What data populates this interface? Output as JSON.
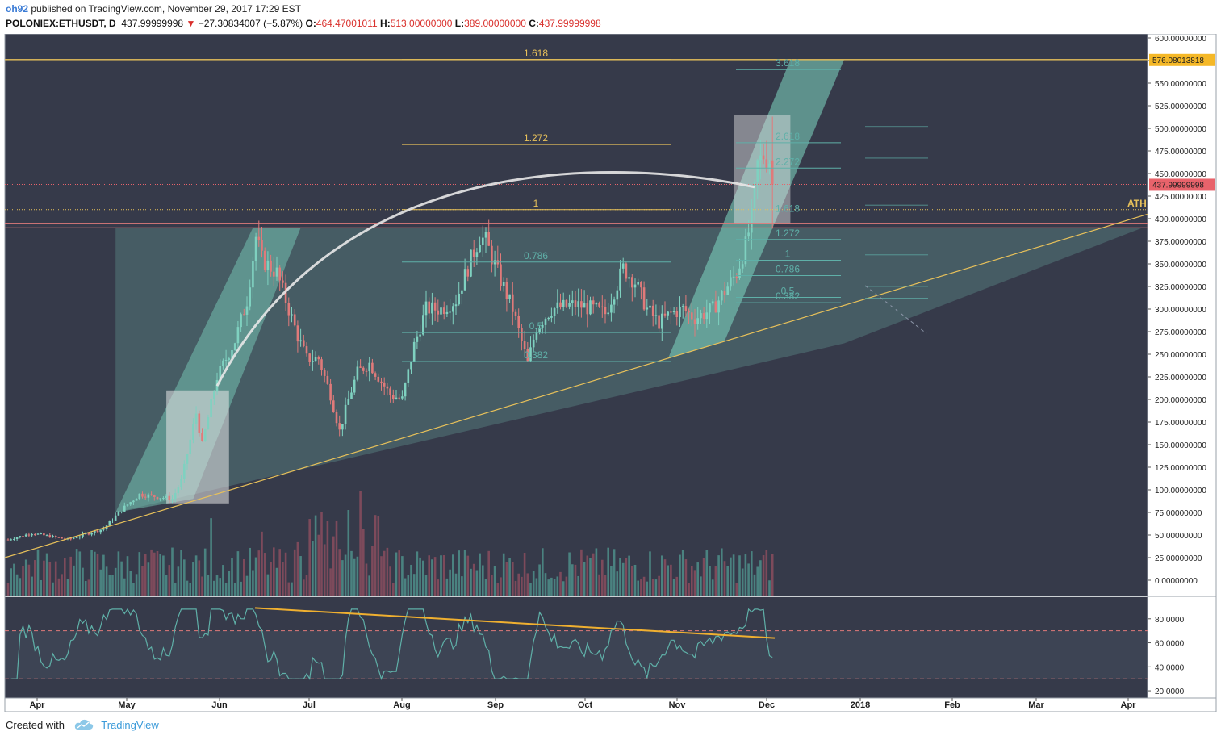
{
  "header": {
    "user": "oh92",
    "published": " published on TradingView.com, November 29, 2017 17:29 EST",
    "symbol": "POLONIEX:ETHUSDT, D",
    "price": "437.99999998",
    "arrow": "▼",
    "change": "−27.30834007 (−5.87%)",
    "o_label": "O:",
    "o_value": "464.47001011",
    "h_label": "H:",
    "h_value": "513.00000000",
    "l_label": "L:",
    "l_value": "389.00000000",
    "c_label": "C:",
    "c_value": "437.99999998"
  },
  "footer": {
    "created": "Created with",
    "brand": "TradingView"
  },
  "colors": {
    "background": "#363a4a",
    "up": "#7fd1c0",
    "down": "#e07a7a",
    "fib_gold": "#e8c15a",
    "fib_teal": "#5fb0a8",
    "channel": "#7fd8c2",
    "price_tag": "#e8636b",
    "level_tag": "#f5b827"
  },
  "chart_data": {
    "type": "candlestick",
    "symbol": "POLONIEX:ETHUSDT",
    "interval": "D",
    "price_axis": {
      "ticks": [
        "600.00000000",
        "575.00000000",
        "550.00000000",
        "525.00000000",
        "500.00000000",
        "475.00000000",
        "450.00000000",
        "425.00000000",
        "400.00000000",
        "375.00000000",
        "350.00000000",
        "325.00000000",
        "300.00000000",
        "275.00000000",
        "250.00000000",
        "225.00000000",
        "200.00000000",
        "175.00000000",
        "150.00000000",
        "125.00000000",
        "100.00000000",
        "75.00000000",
        "50.00000000",
        "25.00000000",
        "0.00000000"
      ],
      "range": [
        -18,
        612
      ]
    },
    "rsi_axis": {
      "ticks": [
        "80.0000",
        "60.0000",
        "40.0000",
        "20.0000"
      ],
      "range": [
        14,
        98
      ],
      "upper_band": 70,
      "lower_band": 30
    },
    "time_axis": [
      "Apr",
      "May",
      "Jun",
      "Jul",
      "Aug",
      "Sep",
      "Oct",
      "Nov",
      "Dec",
      "2018",
      "Feb",
      "Mar",
      "Apr"
    ],
    "current_price_label": "437.99999998",
    "level_label": "576.08013818",
    "annotations": {
      "ath": "ATH",
      "fib_left": [
        "1.618",
        "1.272",
        "1",
        "0.786",
        "0.5",
        "0.382"
      ],
      "fib_right": [
        "3.618",
        "2.618",
        "2.272",
        "1.618",
        "1.272",
        "1",
        "0.786",
        "0.5",
        "0.382"
      ]
    },
    "ohlc_last": {
      "open": 464.47001011,
      "high": 513.0,
      "low": 389.0,
      "close": 437.99999998
    }
  }
}
